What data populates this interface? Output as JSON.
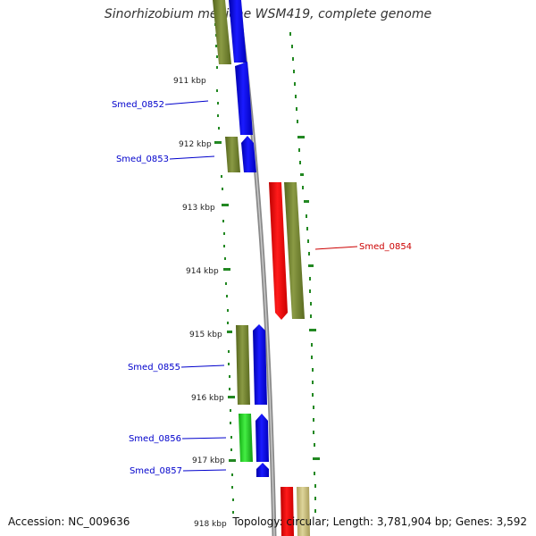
{
  "title": "Sinorhizobium medicae WSM419, complete genome",
  "footer": {
    "accession": "Accession: NC_009636",
    "summary": "Topology: circular; Length: 3,781,904 bp; Genes: 3,592"
  },
  "kbp_labels": [
    "911 kbp",
    "912 kbp",
    "913 kbp",
    "914 kbp",
    "915 kbp",
    "916 kbp",
    "917 kbp",
    "918 kbp"
  ],
  "gene_labels": [
    {
      "id": "Smed_0852",
      "color": "#0000cc"
    },
    {
      "id": "Smed_0853",
      "color": "#0000cc"
    },
    {
      "id": "Smed_0854",
      "color": "#cc0000"
    },
    {
      "id": "Smed_0855",
      "color": "#0000cc"
    },
    {
      "id": "Smed_0856",
      "color": "#0000cc"
    },
    {
      "id": "Smed_0857",
      "color": "#0000cc"
    }
  ],
  "colors": {
    "forward_cds": "#0000ee",
    "reverse_cds": "#ee0000",
    "cog_olive": "#6b7f2a",
    "cog_green": "#22cc22",
    "cog_tan": "#c8bd7a",
    "gc_ticks": "#228822",
    "backbone": "#888888"
  }
}
